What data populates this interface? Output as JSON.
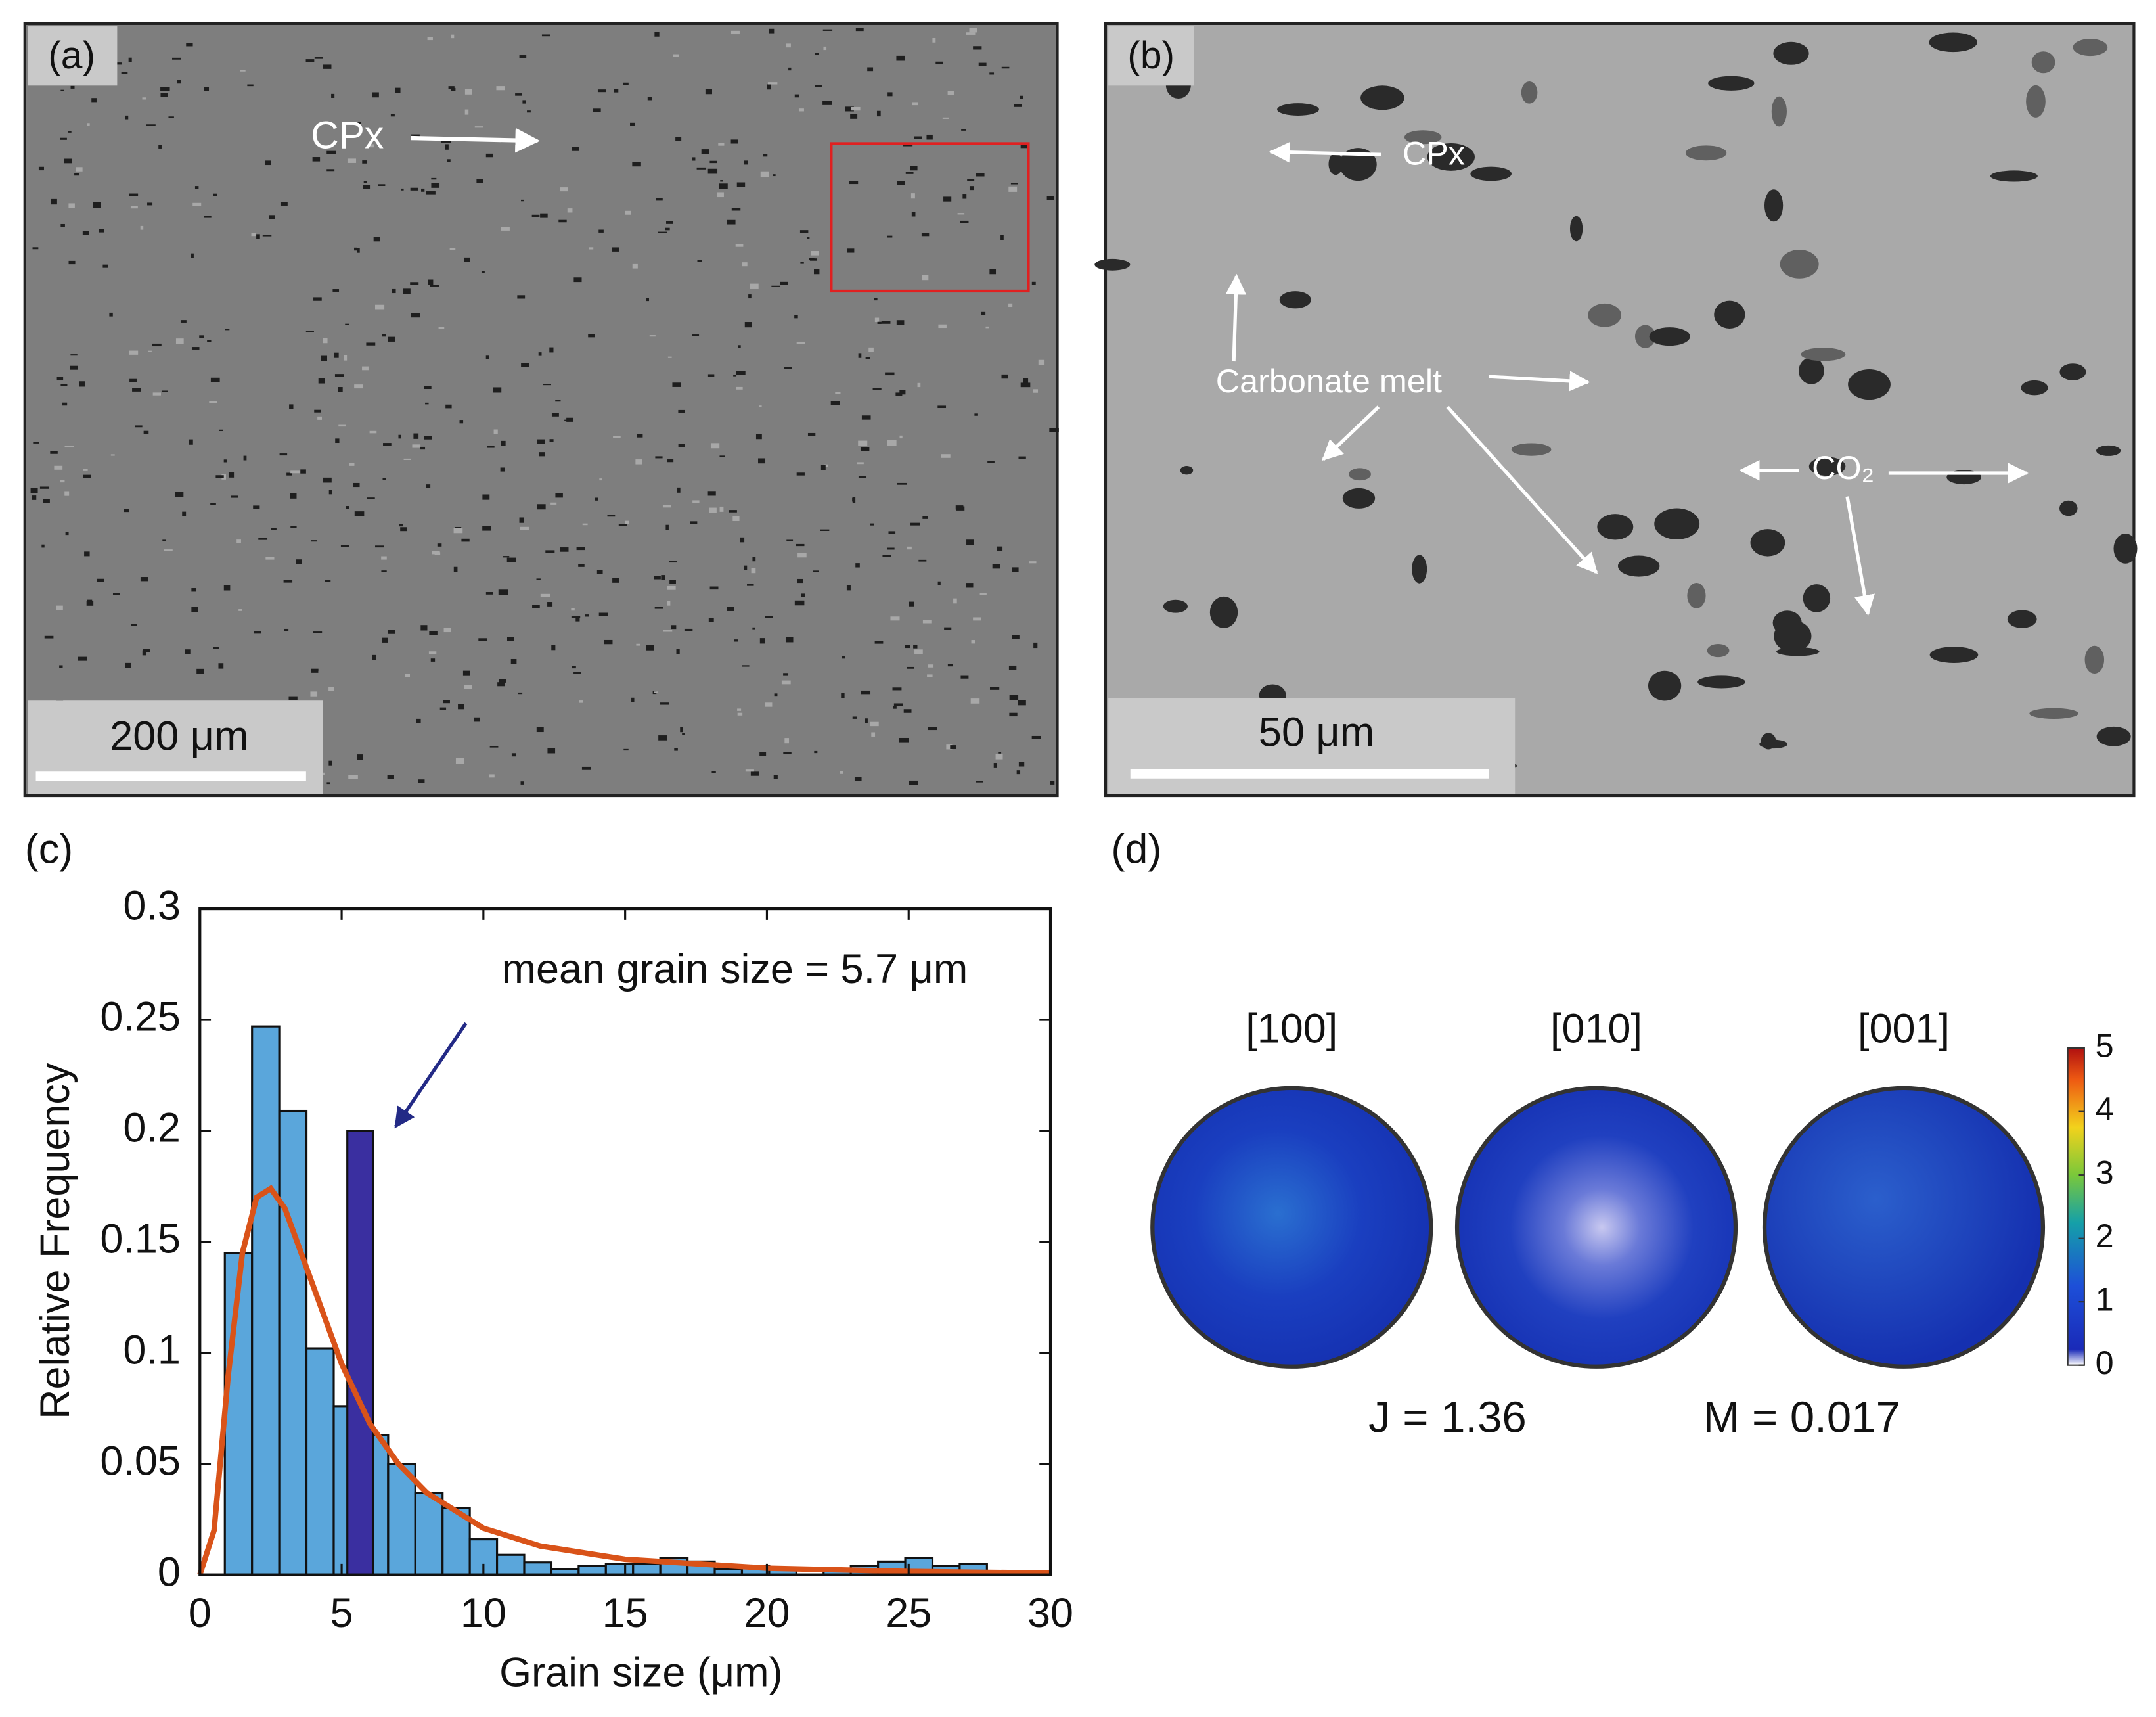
{
  "panels": {
    "a": {
      "label": "(a)",
      "annotation": "CPx",
      "scale_bar": "200 μm"
    },
    "b": {
      "label": "(b)",
      "annotations": [
        "CPx",
        "Carbonate melt",
        "CO₂"
      ],
      "scale_bar": "50 μm"
    },
    "d": {
      "label": "(d)",
      "pole_figures": [
        "[100]",
        "[010]",
        "[001]"
      ],
      "j_index": "J = 1.36",
      "m_index": "M = 0.017",
      "colorbar": {
        "lim": [
          0,
          5
        ],
        "ticks": [
          0,
          1,
          2,
          3,
          4,
          5
        ]
      }
    }
  },
  "chart_data": {
    "type": "histogram",
    "label": "(c)",
    "x_label": "Grain size (μm)",
    "y_label": "Relative Frequency",
    "annotation": "mean grain size = 5.7 μm",
    "bins": [
      0.88,
      1.84,
      2.8,
      3.76,
      4.72,
      5.68,
      6.64,
      7.6,
      8.56,
      9.52,
      10.48,
      11.44,
      12.4,
      13.36,
      14.32,
      15.28,
      16.24,
      17.2,
      18.16,
      19.12,
      20.08,
      21.04,
      22,
      22.96,
      23.92,
      24.88,
      25.84,
      26.8,
      27.76
    ],
    "values": [
      0.145,
      0.247,
      0.209,
      0.102,
      0.076,
      0.063,
      0.05,
      0.037,
      0.03,
      0.016,
      0.009,
      0.0056,
      0.0025,
      0.004,
      0.005,
      0.005,
      0.0075,
      0.006,
      0.0025,
      0.004,
      0.003,
      0,
      0.002,
      0.004,
      0.006,
      0.0075,
      0.004,
      0.005
    ],
    "color": "#5aa6db",
    "mean_bar": {
      "bins": [
        5.2,
        6.1
      ],
      "value": 0.2,
      "color": "#3a2fa0"
    },
    "fit": {
      "x": [
        0,
        0.5,
        1,
        1.5,
        2,
        2.5,
        3,
        4,
        5,
        6,
        7,
        8,
        10,
        12,
        15,
        20,
        25,
        30
      ],
      "values": [
        0,
        0.02,
        0.09,
        0.145,
        0.17,
        0.174,
        0.165,
        0.13,
        0.095,
        0.068,
        0.05,
        0.037,
        0.021,
        0.013,
        0.007,
        0.003,
        0.0015,
        0.0008
      ],
      "color": "#d95319"
    },
    "xlim": [
      0,
      30
    ],
    "xticks": [
      0,
      5,
      10,
      15,
      20,
      25,
      30
    ],
    "ylim": [
      0,
      0.3
    ],
    "yticks": [
      0,
      0.05,
      0.1,
      0.15,
      0.2,
      0.25,
      0.3
    ]
  }
}
